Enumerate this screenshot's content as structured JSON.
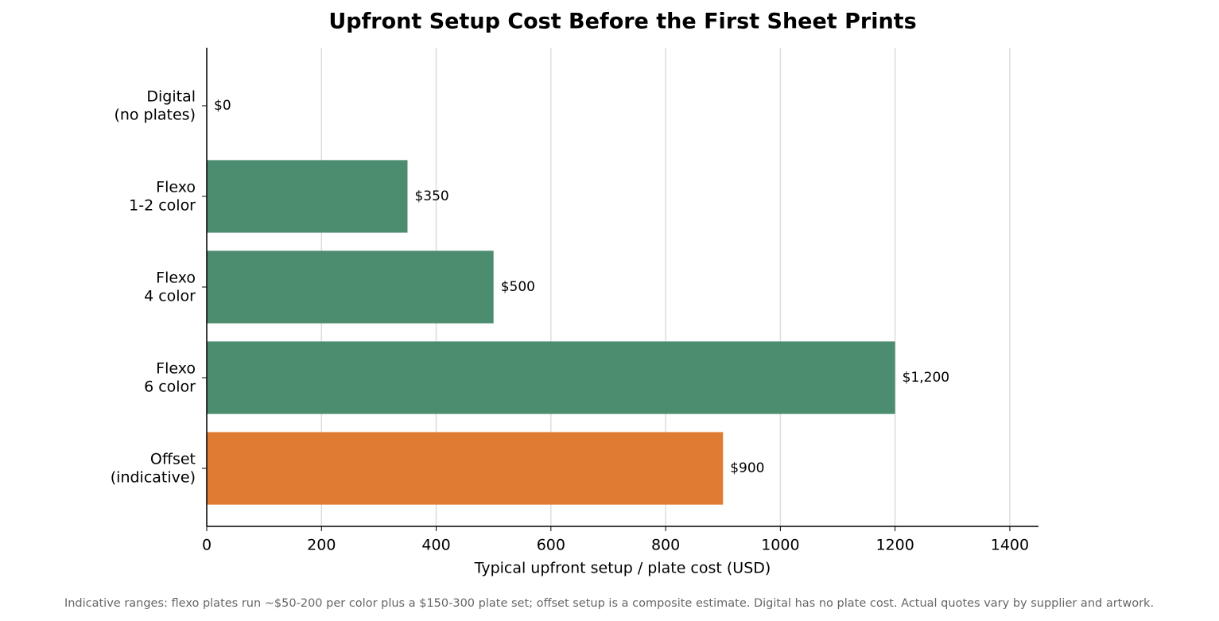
{
  "chart_data": {
    "type": "barh",
    "title": "Upfront Setup Cost Before the First Sheet Prints",
    "xlabel": "Typical upfront setup / plate cost (USD)",
    "footnote": "Indicative ranges: flexo plates run ~$50-200 per color plus a $150-300 plate set; offset setup is a composite estimate. Digital has no plate cost. Actual quotes vary by supplier and artwork.",
    "categories": [
      "Digital\n(no plates)",
      "Flexo\n1-2 color",
      "Flexo\n4 color",
      "Flexo\n6 color",
      "Offset\n(indicative)"
    ],
    "values": [
      0,
      350,
      500,
      1200,
      900
    ],
    "value_labels": [
      "$0",
      "$350",
      "$500",
      "$1,200",
      "$900"
    ],
    "colors": [
      "#4c8c6f",
      "#4c8c6f",
      "#4c8c6f",
      "#4c8c6f",
      "#e07b33"
    ],
    "xlim": [
      0,
      1450
    ],
    "xticks": [
      0,
      200,
      400,
      600,
      800,
      1000,
      1200,
      1400
    ],
    "grid": true
  }
}
